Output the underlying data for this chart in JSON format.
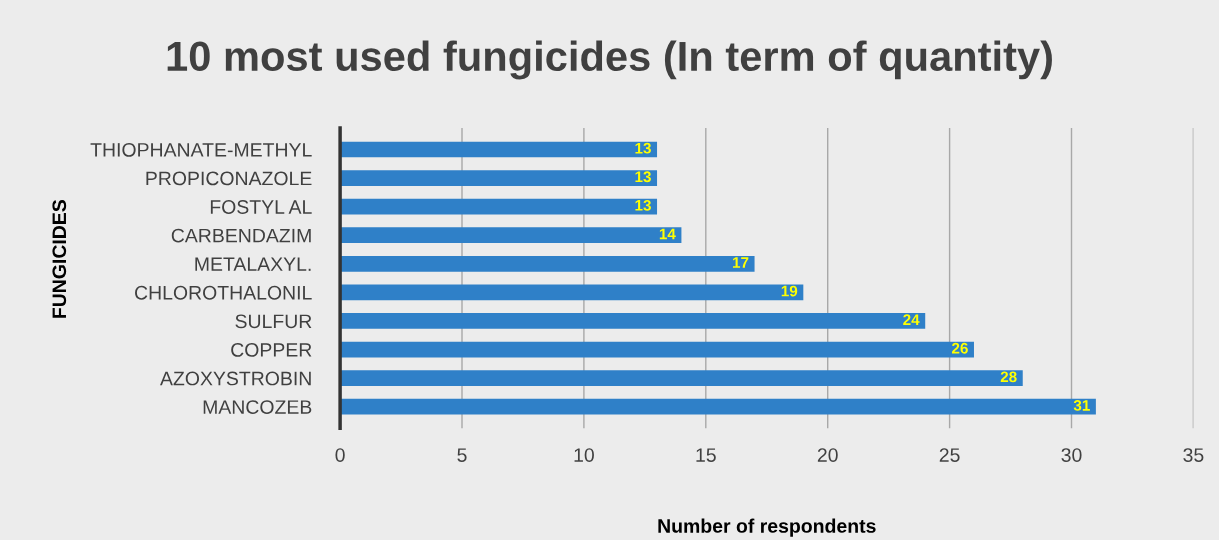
{
  "chart_data": {
    "type": "bar",
    "orientation": "horizontal",
    "title": "10 most used fungicides (In term of quantity)",
    "xlabel": "Number of respondents",
    "ylabel": "FUNGICIDES",
    "categories": [
      "THIOPHANATE-METHYL",
      "PROPICONAZOLE",
      "FOSTYL AL",
      "CARBENDAZIM",
      "METALAXYL.",
      "CHLOROTHALONIL",
      "SULFUR",
      "COPPER",
      "AZOXYSTROBIN",
      "MANCOZEB"
    ],
    "values": [
      13,
      13,
      13,
      14,
      17,
      19,
      24,
      26,
      28,
      31
    ],
    "color": "#2f80c8",
    "xlim": [
      0,
      35
    ],
    "xticks": [
      0,
      5,
      10,
      15,
      20,
      25,
      30,
      35
    ],
    "grid": "x",
    "data_labels": true,
    "legend": false
  }
}
